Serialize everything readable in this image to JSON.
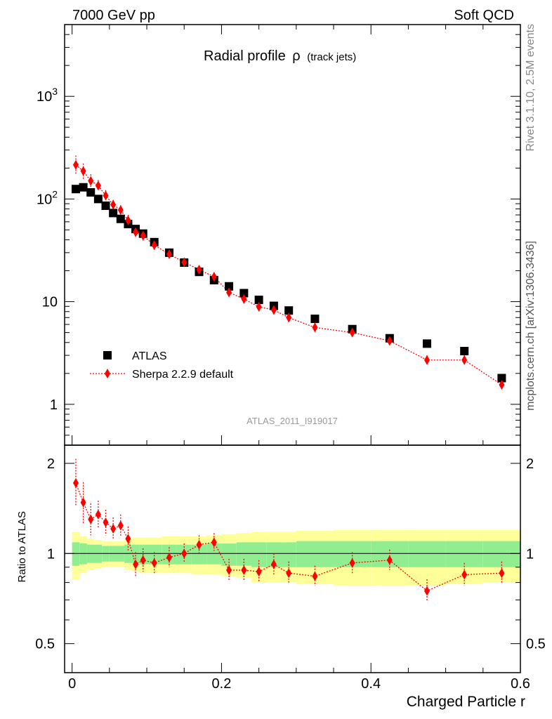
{
  "header": {
    "left": "7000 GeV pp",
    "right": "Soft QCD"
  },
  "side_text": {
    "rivet": "Rivet 3.1.10,  2.5M events",
    "mcplots": "mcplots.cern.ch [arXiv:1306.3436]"
  },
  "chart_data": [
    {
      "type": "scatter",
      "title": "Radial profile",
      "title_symbol": "ρ",
      "title_suffix": "(track jets)",
      "watermark": "ATLAS_2011_I919017",
      "xlabel": "Charged Particle r",
      "ylabel": "",
      "xlim": [
        -0.01,
        0.6
      ],
      "ylim": [
        0.4,
        5000
      ],
      "log_y": true,
      "y_tick_labels": [
        "1",
        "10",
        "10^2",
        "10^3"
      ],
      "legend_position": "bottom-left",
      "x": [
        0.005,
        0.015,
        0.025,
        0.035,
        0.045,
        0.055,
        0.065,
        0.075,
        0.085,
        0.095,
        0.11,
        0.13,
        0.15,
        0.17,
        0.19,
        0.21,
        0.23,
        0.25,
        0.27,
        0.29,
        0.325,
        0.375,
        0.425,
        0.475,
        0.525,
        0.575
      ],
      "series": [
        {
          "name": "ATLAS",
          "color": "#000000",
          "marker": "square",
          "values": [
            125,
            130,
            116,
            100,
            86,
            73,
            64,
            57,
            51,
            46,
            38,
            30,
            24,
            19.5,
            16.2,
            14.1,
            12.1,
            10.4,
            9.1,
            8.2,
            6.8,
            5.4,
            4.4,
            3.9,
            3.3,
            1.8
          ]
        },
        {
          "name": "Sherpa 2.2.9 default",
          "color": "#ff0000",
          "marker": "diamond",
          "line": "dotted",
          "values": [
            215,
            187,
            150,
            135,
            108,
            88,
            78,
            62,
            47.5,
            44,
            35.5,
            29,
            24.2,
            20.5,
            17.5,
            12.3,
            10.6,
            8.9,
            8.3,
            7.0,
            5.6,
            5.0,
            4.15,
            2.7,
            2.7,
            1.55
          ],
          "err_low": [
            40,
            30,
            20,
            16,
            12,
            9,
            8,
            7,
            5,
            5,
            3.5,
            2.5,
            2,
            1.8,
            1.5,
            1.1,
            1.0,
            0.8,
            0.8,
            0.7,
            0.5,
            0.45,
            0.35,
            0.25,
            0.25,
            0.15
          ],
          "err_high": [
            50,
            35,
            24,
            18,
            14,
            10,
            9,
            8,
            6,
            5,
            4,
            3,
            2.5,
            2,
            1.8,
            1.2,
            1.1,
            0.9,
            0.9,
            0.8,
            0.6,
            0.5,
            0.4,
            0.3,
            0.3,
            0.18
          ]
        }
      ]
    },
    {
      "type": "scatter",
      "xlabel": "Charged Particle r",
      "ylabel": "Ratio to ATLAS",
      "xlim": [
        -0.01,
        0.6
      ],
      "ylim": [
        0.4,
        2.3
      ],
      "log_y": true,
      "y_tick_labels": [
        "0.5",
        "1",
        "2"
      ],
      "x_tick_labels": [
        "0",
        "0.2",
        "0.4",
        "0.6"
      ],
      "reference_line": 1,
      "bands": {
        "edges": [
          0.0,
          0.01,
          0.02,
          0.03,
          0.04,
          0.05,
          0.06,
          0.07,
          0.08,
          0.09,
          0.1,
          0.12,
          0.14,
          0.16,
          0.18,
          0.2,
          0.22,
          0.24,
          0.26,
          0.28,
          0.3,
          0.35,
          0.4,
          0.45,
          0.5,
          0.55,
          0.6
        ],
        "stat_color": "#90ee90",
        "total_color": "#ffff99",
        "stat_low": [
          0.91,
          0.92,
          0.93,
          0.93,
          0.94,
          0.94,
          0.94,
          0.93,
          0.93,
          0.92,
          0.92,
          0.92,
          0.92,
          0.92,
          0.92,
          0.91,
          0.91,
          0.9,
          0.9,
          0.9,
          0.9,
          0.9,
          0.9,
          0.9,
          0.9,
          0.9
        ],
        "stat_high": [
          1.09,
          1.08,
          1.07,
          1.07,
          1.06,
          1.06,
          1.06,
          1.07,
          1.07,
          1.07,
          1.07,
          1.07,
          1.07,
          1.07,
          1.08,
          1.08,
          1.09,
          1.09,
          1.09,
          1.09,
          1.1,
          1.1,
          1.1,
          1.1,
          1.1,
          1.1
        ],
        "total_low": [
          0.82,
          0.86,
          0.88,
          0.89,
          0.9,
          0.9,
          0.9,
          0.88,
          0.87,
          0.86,
          0.86,
          0.86,
          0.86,
          0.85,
          0.85,
          0.84,
          0.83,
          0.8,
          0.8,
          0.8,
          0.79,
          0.78,
          0.78,
          0.78,
          0.79,
          0.8
        ],
        "total_high": [
          1.18,
          1.14,
          1.12,
          1.11,
          1.1,
          1.1,
          1.1,
          1.12,
          1.13,
          1.13,
          1.13,
          1.14,
          1.14,
          1.14,
          1.15,
          1.16,
          1.17,
          1.18,
          1.18,
          1.18,
          1.19,
          1.2,
          1.2,
          1.2,
          1.2,
          1.2
        ]
      },
      "x": [
        0.005,
        0.015,
        0.025,
        0.035,
        0.045,
        0.055,
        0.065,
        0.075,
        0.085,
        0.095,
        0.11,
        0.13,
        0.15,
        0.17,
        0.19,
        0.21,
        0.23,
        0.25,
        0.27,
        0.29,
        0.325,
        0.375,
        0.425,
        0.475,
        0.525,
        0.575
      ],
      "series": [
        {
          "name": "Sherpa 2.2.9 default",
          "color": "#ff0000",
          "values": [
            1.72,
            1.48,
            1.3,
            1.35,
            1.27,
            1.21,
            1.24,
            1.12,
            0.92,
            0.95,
            0.93,
            0.97,
            1.0,
            1.07,
            1.09,
            0.88,
            0.88,
            0.87,
            0.92,
            0.86,
            0.84,
            0.93,
            0.95,
            0.75,
            0.85,
            0.86
          ],
          "err_low": [
            0.28,
            0.22,
            0.15,
            0.13,
            0.12,
            0.1,
            0.1,
            0.1,
            0.08,
            0.08,
            0.07,
            0.07,
            0.07,
            0.07,
            0.07,
            0.07,
            0.07,
            0.07,
            0.07,
            0.07,
            0.06,
            0.07,
            0.07,
            0.06,
            0.07,
            0.07
          ],
          "err_high": [
            0.35,
            0.25,
            0.17,
            0.15,
            0.13,
            0.11,
            0.11,
            0.11,
            0.09,
            0.09,
            0.08,
            0.08,
            0.08,
            0.08,
            0.08,
            0.08,
            0.08,
            0.08,
            0.08,
            0.08,
            0.07,
            0.08,
            0.08,
            0.07,
            0.08,
            0.08
          ]
        }
      ]
    }
  ]
}
